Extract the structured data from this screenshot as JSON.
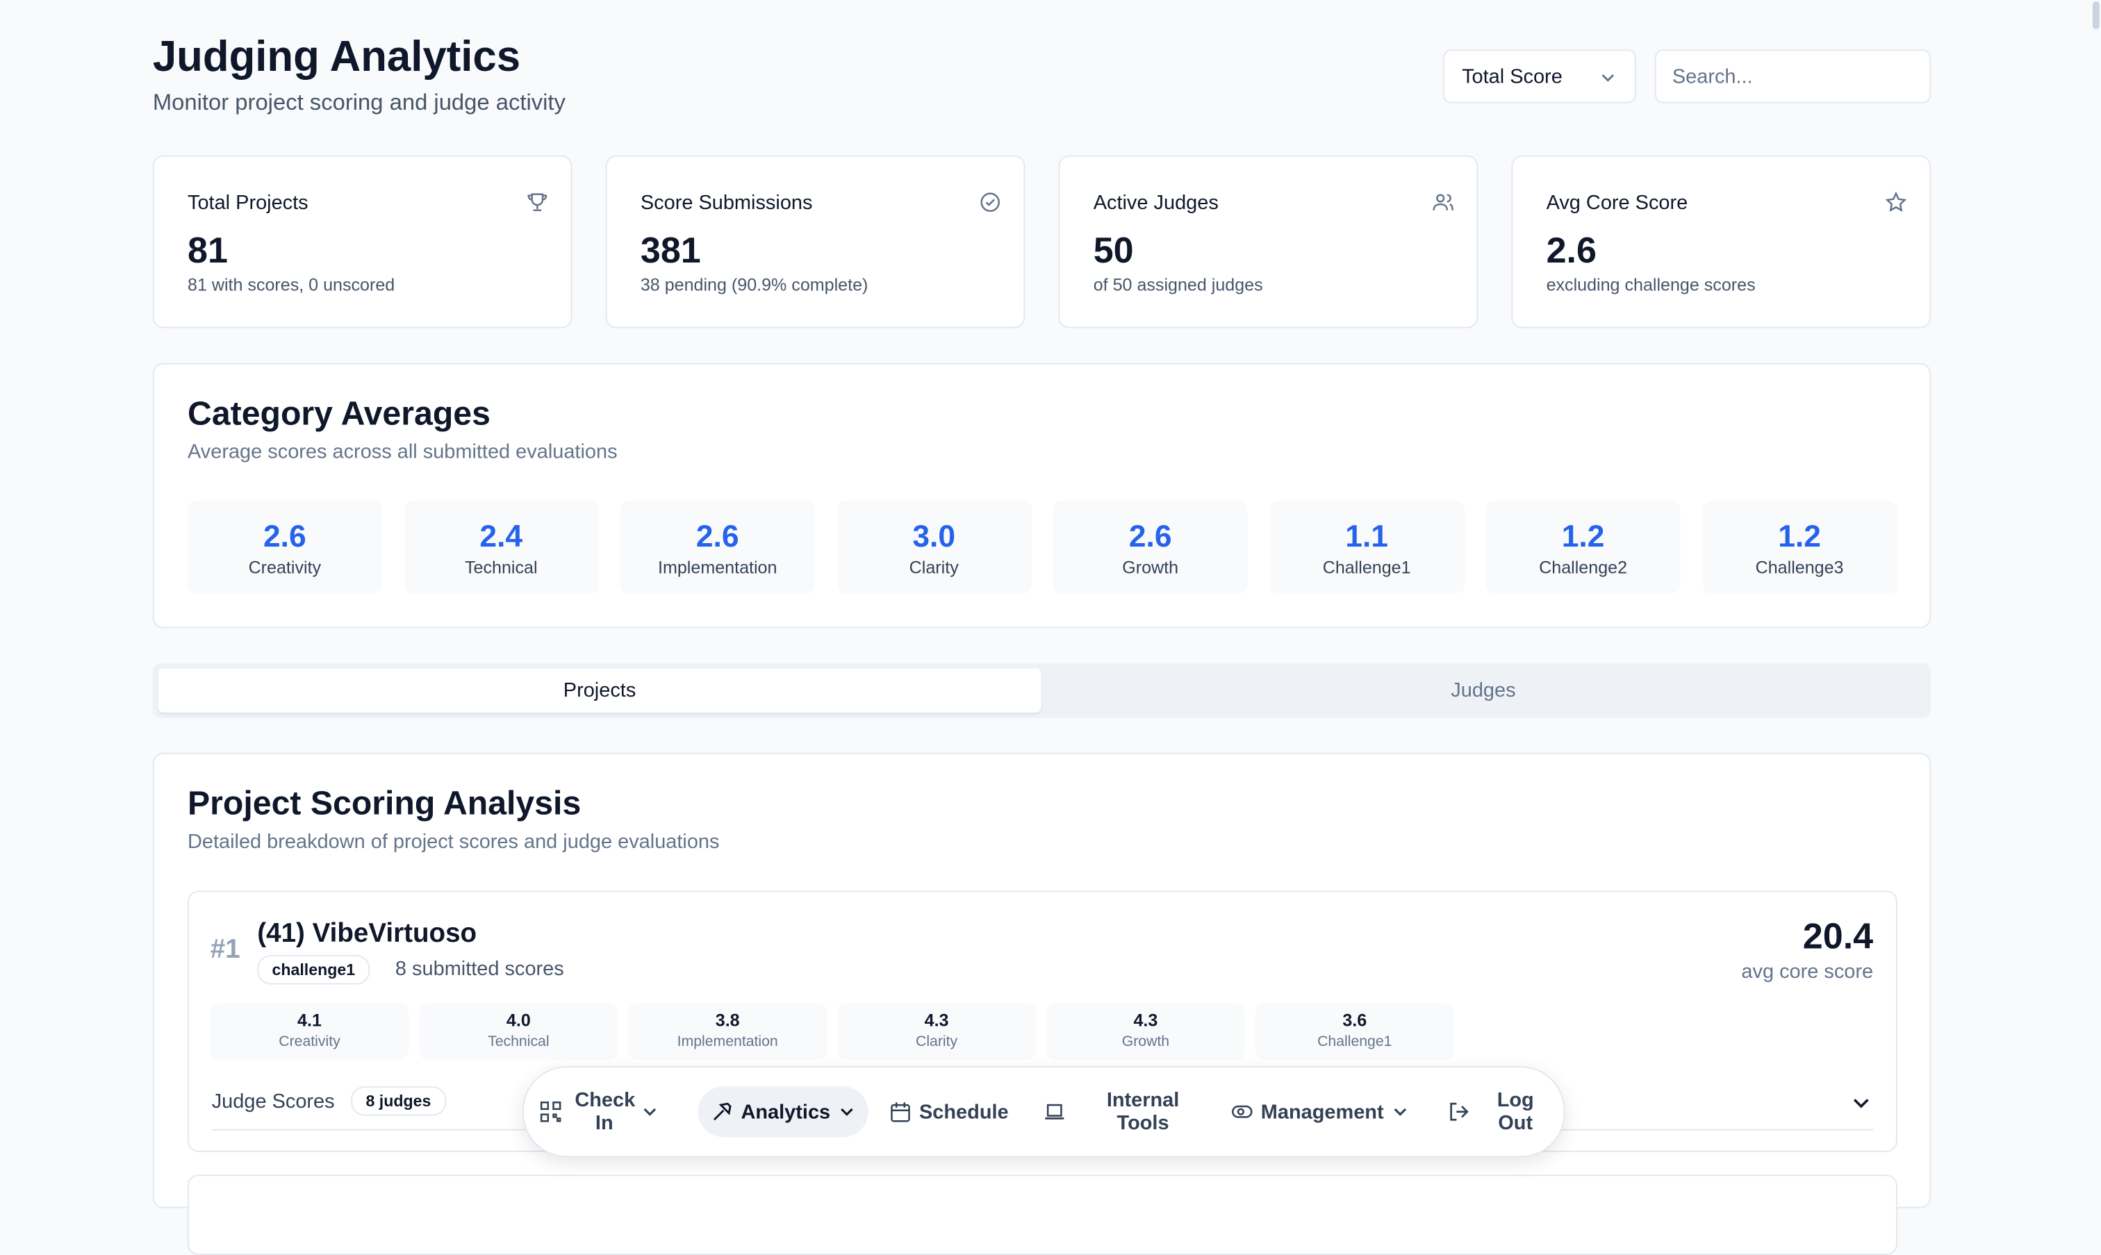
{
  "header": {
    "title": "Judging Analytics",
    "subtitle": "Monitor project scoring and judge activity"
  },
  "controls": {
    "sort": "Total Score",
    "search_placeholder": "Search..."
  },
  "stats": [
    {
      "label": "Total Projects",
      "value": "81",
      "note": "81 with scores, 0 unscored"
    },
    {
      "label": "Score Submissions",
      "value": "381",
      "note": "38 pending (90.9% complete)"
    },
    {
      "label": "Active Judges",
      "value": "50",
      "note": "of 50 assigned judges"
    },
    {
      "label": "Avg Core Score",
      "value": "2.6",
      "note": "excluding challenge scores"
    }
  ],
  "category_averages": {
    "title": "Category Averages",
    "subtitle": "Average scores across all submitted evaluations",
    "items": [
      {
        "value": "2.6",
        "label": "Creativity"
      },
      {
        "value": "2.4",
        "label": "Technical"
      },
      {
        "value": "2.6",
        "label": "Implementation"
      },
      {
        "value": "3.0",
        "label": "Clarity"
      },
      {
        "value": "2.6",
        "label": "Growth"
      },
      {
        "value": "1.1",
        "label": "Challenge1"
      },
      {
        "value": "1.2",
        "label": "Challenge2"
      },
      {
        "value": "1.2",
        "label": "Challenge3"
      }
    ]
  },
  "tabs": [
    "Projects",
    "Judges"
  ],
  "project_analysis": {
    "title": "Project Scoring Analysis",
    "subtitle": "Detailed breakdown of project scores and judge evaluations",
    "projects": [
      {
        "rank": "#1",
        "name": "(41) VibeVirtuoso",
        "tag": "challenge1",
        "submitted": "8 submitted scores",
        "score": "20.4",
        "score_label": "avg core score",
        "categories": [
          {
            "value": "4.1",
            "label": "Creativity"
          },
          {
            "value": "4.0",
            "label": "Technical"
          },
          {
            "value": "3.8",
            "label": "Implementation"
          },
          {
            "value": "4.3",
            "label": "Clarity"
          },
          {
            "value": "4.3",
            "label": "Growth"
          },
          {
            "value": "3.6",
            "label": "Challenge1"
          }
        ],
        "judge_scores_label": "Judge Scores",
        "judges_badge": "8 judges"
      }
    ]
  },
  "nav": [
    "Check In",
    "Analytics",
    "Schedule",
    "Internal Tools",
    "Management",
    "Log Out"
  ]
}
